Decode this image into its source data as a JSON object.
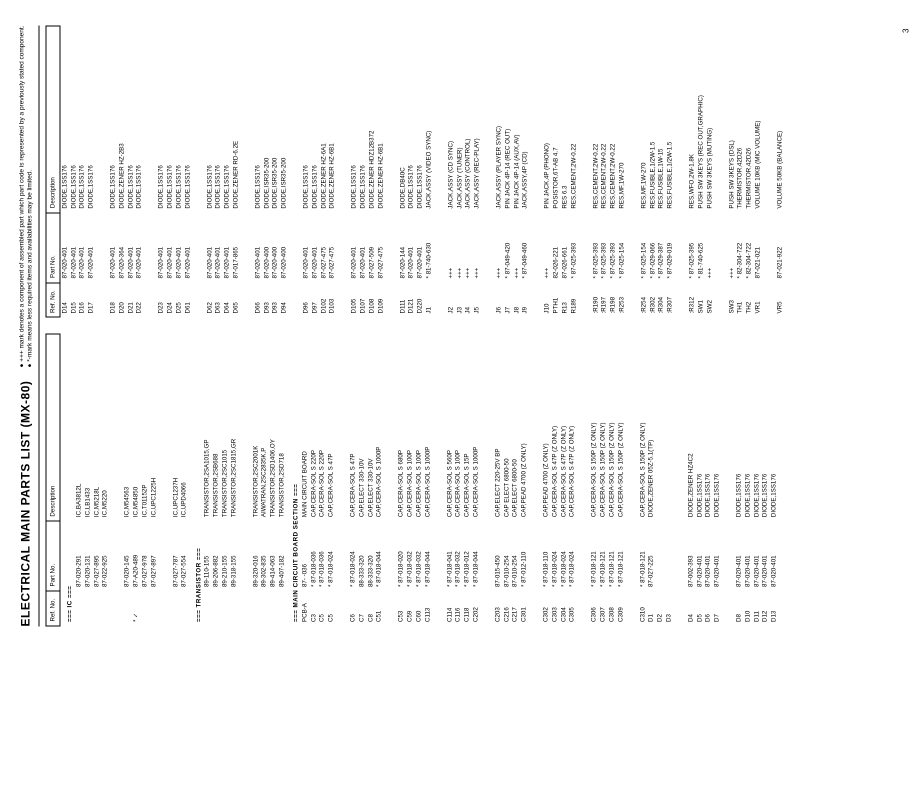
{
  "title": "ELECTRICAL MAIN PARTS LIST (MX-80)",
  "notes_line1": "● +++ mark denotes a component of assembled part which part code is represented by a previously stated component.",
  "notes_line2": "● *-mark means less required items and availabilities may be limited.",
  "headers": {
    "ref": "Ref. No.",
    "part": "Part No.",
    "desc": "Description"
  },
  "page_number": "3",
  "left_rows": [
    {
      "type": "section",
      "ref": "=== IC ==="
    },
    {
      "ref": "",
      "part": "87-020-291",
      "desc": "IC,BA3812L"
    },
    {
      "ref": "",
      "part": "87-020-131",
      "desc": "IC,LB1433"
    },
    {
      "ref": "",
      "part": "87-027-895",
      "desc": "IC,M5218L"
    },
    {
      "ref": "",
      "part": "87-022-925",
      "desc": "IC,M5220"
    },
    {
      "type": "gap"
    },
    {
      "ref": "",
      "part": "87-020-145",
      "desc": "IC,M54563"
    },
    {
      "ref": "* ✓",
      "part": "87-A20-489",
      "desc": "IC,M54850"
    },
    {
      "ref": "",
      "part": "87-027-978",
      "desc": "IC,T01152P"
    },
    {
      "ref": "",
      "part": "87-027-897",
      "desc": "IC,UPC1225H"
    },
    {
      "type": "gap"
    },
    {
      "ref": "",
      "part": "87-027-787",
      "desc": "IC,UPC1237H"
    },
    {
      "ref": "",
      "part": "87-027-554",
      "desc": "IC,UPD4066"
    },
    {
      "type": "section",
      "ref": "=== TRANSISTOR ==="
    },
    {
      "ref": "",
      "part": "89-110-155",
      "desc": "TRANSISTOR,2SA1015,GP"
    },
    {
      "ref": "",
      "part": "89-206-882",
      "desc": "TRANSISTOR,2SB688"
    },
    {
      "ref": "",
      "part": "89-210-155",
      "desc": "TRANSISTOR,2SC1015"
    },
    {
      "ref": "",
      "part": "89-318-155",
      "desc": "TRANSISTOR,2SC1815,GR"
    },
    {
      "type": "gap"
    },
    {
      "ref": "",
      "part": "89-320-016",
      "desc": "TRANSISTOR,2SC2001K"
    },
    {
      "ref": "",
      "part": "89-302-835",
      "desc": "AIWATRAN,2SC2835K,P"
    },
    {
      "ref": "",
      "part": "89-414-063",
      "desc": "TRANSISTOR,2SD1406,OY"
    },
    {
      "ref": "",
      "part": "89-407-182",
      "desc": "TRANSISTOR,2SD718"
    },
    {
      "type": "section",
      "ref": "=== MAIN CIRCUIT BOARD SECTION ==="
    },
    {
      "ref": "PCB-A",
      "part": "87-     -036",
      "desc": "MAIN CIRCUIT BOARD"
    },
    {
      "ref": "C3",
      "part": "* 87-018-036",
      "desc": "CAP,CERA-SOL S 220P"
    },
    {
      "ref": "C5",
      "part": "* 87-018-036",
      "desc": "CAP,CERA-SOL S 220P"
    },
    {
      "ref": "C5",
      "part": "* 87-018-024",
      "desc": "CAP,CERA-SOL S 47P"
    },
    {
      "type": "gap"
    },
    {
      "ref": "C6",
      "part": "* 87-018-024",
      "desc": "CAP,CERA-SOL S 47P"
    },
    {
      "ref": "C7",
      "part": "88-333-320",
      "desc": "CAP,ELECT 330-10V"
    },
    {
      "ref": "C8",
      "part": "88-333-320",
      "desc": "CAP,ELECT 330-10V"
    },
    {
      "ref": "C51",
      "part": "* 87-018-044",
      "desc": "CAP,CERA-SOL S 1000P"
    },
    {
      "type": "gap"
    },
    {
      "ref": "C53",
      "part": "* 87-018-020",
      "desc": "CAP,CERA-SOL S 680P"
    },
    {
      "ref": "C59",
      "part": "* 87-018-032",
      "desc": "CAP,CERA-SOL S 100P"
    },
    {
      "ref": "C60",
      "part": "* 87-018-032",
      "desc": "CAP,CERA-SOL S 100P"
    },
    {
      "ref": "C113",
      "part": "* 87-018-044",
      "desc": "CAP,CERA-SOL S 1000P"
    },
    {
      "type": "gap"
    },
    {
      "ref": "C114",
      "part": "* 87-018-041",
      "desc": "CAP,CERA-SOL S 560P"
    },
    {
      "ref": "C116",
      "part": "* 87-018-032",
      "desc": "CAP,CERA-SOL S 100P"
    },
    {
      "ref": "C118",
      "part": "* 87-018-012",
      "desc": "CAP,CERA-SOL S 15P"
    },
    {
      "ref": "C202",
      "part": "* 87-018-044",
      "desc": "CAP,CERA-SOL S 1000P"
    },
    {
      "type": "gap"
    },
    {
      "ref": "C203",
      "part": "87-015-450",
      "desc": "CAP,ELECT 220-25V BP"
    },
    {
      "ref": "C216",
      "part": "87-010-254",
      "desc": "CAP ELECT 6800-50"
    },
    {
      "ref": "C217",
      "part": "87-010-254",
      "desc": "CAP,ELECT 6800-50"
    },
    {
      "ref": "C301",
      "part": "* 87-012-110",
      "desc": "CAP,PEAD 4700 (Z ONLY)"
    },
    {
      "type": "gap"
    },
    {
      "ref": "C302",
      "part": "* 87-018-110",
      "desc": "CAP,PEAD 4700 (Z ONLY)"
    },
    {
      "ref": "C303",
      "part": "* 87-018-024",
      "desc": "CAP,CERA-SOL S 47P (Z ONLY)"
    },
    {
      "ref": "C304",
      "part": "* 87-018-024",
      "desc": "CAP,CERA-SOL S 47P (Z ONLY)"
    },
    {
      "ref": "C305",
      "part": "* 87-018-024",
      "desc": "CAP,CERA-SOL S 47P (Z ONLY)"
    },
    {
      "type": "gap"
    },
    {
      "ref": "C306",
      "part": "* 87-018-121",
      "desc": "CAP,CERA-SOL S 150P (Z ONLY)"
    },
    {
      "ref": "C307",
      "part": "* 87-018-121",
      "desc": "CAP,CERA-SOL S 150P (Z ONLY)"
    },
    {
      "ref": "C308",
      "part": "* 87-018-121",
      "desc": "CAP,CERA-SOL S 150P (Z ONLY)"
    },
    {
      "ref": "C309",
      "part": "* 87-018-121",
      "desc": "CAP,CERA-SOL S 150P (Z ONLY)"
    },
    {
      "type": "gap"
    },
    {
      "ref": "C310",
      "part": "* 87-018-121",
      "desc": "CAP,CERA-SOL S 150P (Z ONLY)"
    },
    {
      "ref": "D1",
      "part": "87-027-225",
      "desc": "DIODE,ZENER 05Z-5.1(TP)"
    },
    {
      "ref": "D2",
      "part": "",
      "desc": ""
    },
    {
      "ref": "D3",
      "part": "",
      "desc": ""
    },
    {
      "type": "gap"
    },
    {
      "ref": "D4",
      "part": "87-002-393",
      "desc": "DIODE,ZENER HZ4C2"
    },
    {
      "ref": "D5",
      "part": "87-020-401",
      "desc": "DIODE,1SS176"
    },
    {
      "ref": "D6",
      "part": "87-020-401",
      "desc": "DIODE,1SS176"
    },
    {
      "ref": "D7",
      "part": "87-020-401",
      "desc": "DIODE,1SS176"
    },
    {
      "type": "gap"
    },
    {
      "ref": "D8",
      "part": "87-020-401",
      "desc": "DIODE,1SS176"
    },
    {
      "ref": "D10",
      "part": "87-020-401",
      "desc": "DIODE,1SS176"
    },
    {
      "ref": "D11",
      "part": "87-020-401",
      "desc": "DIODE,1SS176"
    },
    {
      "ref": "D12",
      "part": "87-020-401",
      "desc": "DIODE,1SS176"
    },
    {
      "ref": "D13",
      "part": "87-020-401",
      "desc": "DIODE,1SS176"
    }
  ],
  "right_rows": [
    {
      "ref": "D14",
      "part": "87-020-401",
      "desc": "DIODE,1SS176"
    },
    {
      "ref": "D15",
      "part": "87-020-401",
      "desc": "DIODE,1SS176"
    },
    {
      "ref": "D16",
      "part": "87-020-401",
      "desc": "DIODE,1SS176"
    },
    {
      "ref": "D17",
      "part": "87-020-401",
      "desc": "DIODE,1SS176"
    },
    {
      "type": "gap"
    },
    {
      "ref": "D18",
      "part": "87-020-401",
      "desc": "DIODE,1SS176"
    },
    {
      "ref": "D20",
      "part": "87-020-364",
      "desc": "DIODE,ZENER HZ-2B3"
    },
    {
      "ref": "D21",
      "part": "87-020-401",
      "desc": "DIODE,1SS176"
    },
    {
      "ref": "D22",
      "part": "87-020-401",
      "desc": "DIODE,1SS176"
    },
    {
      "type": "gap"
    },
    {
      "ref": "D23",
      "part": "87-020-401",
      "desc": "DIODE,1SS176"
    },
    {
      "ref": "D24",
      "part": "87-020-401",
      "desc": "DIODE,1SS176"
    },
    {
      "ref": "D25",
      "part": "87-020-401",
      "desc": "DIODE,1SS176"
    },
    {
      "ref": "D61",
      "part": "87-020-401",
      "desc": "DIODE,1SS176"
    },
    {
      "type": "gap"
    },
    {
      "ref": "D62",
      "part": "87-020-401",
      "desc": "DIODE,1SS176"
    },
    {
      "ref": "D63",
      "part": "87-020-401",
      "desc": "DIODE,1SS176"
    },
    {
      "ref": "D64",
      "part": "87-020-401",
      "desc": "DIODE,1SS176"
    },
    {
      "ref": "D65",
      "part": "87-017-865",
      "desc": "DIODE,ZENER RD-6.2E"
    },
    {
      "type": "gap"
    },
    {
      "ref": "D66",
      "part": "87-020-401",
      "desc": "DIODE,1SS176"
    },
    {
      "ref": "D93",
      "part": "87-020-400",
      "desc": "DIODE,ISR35-200"
    },
    {
      "ref": "D93",
      "part": "87-020-400",
      "desc": "DIODE,ISR35-200"
    },
    {
      "ref": "D94",
      "part": "87-020-400",
      "desc": "DIODE,ISR35-200"
    },
    {
      "type": "gap"
    },
    {
      "ref": "D96",
      "part": "87-020-401",
      "desc": "DIODE,1SS176"
    },
    {
      "ref": "D97",
      "part": "87-020-401",
      "desc": "DIODE,1SS176"
    },
    {
      "ref": "D102",
      "part": "87-027-475",
      "desc": "DIODE,ZENER HZ-6A1"
    },
    {
      "ref": "D103",
      "part": "87-027-475",
      "desc": "DIODE,ZENER HZ-6B1"
    },
    {
      "type": "gap"
    },
    {
      "ref": "D105",
      "part": "87-020-401",
      "desc": "DIODE,1SS176"
    },
    {
      "ref": "D107",
      "part": "87-020-401",
      "desc": "DIODE,1SS176"
    },
    {
      "ref": "D108",
      "part": "87-027-509",
      "desc": "DIODE,ZENER HDZ12B372"
    },
    {
      "ref": "D109",
      "part": "87-027-475",
      "desc": "DIODE,ZENER HZ-6B1"
    },
    {
      "type": "gap"
    },
    {
      "ref": "D111",
      "part": "87-020-144",
      "desc": "DIODE,DB40C"
    },
    {
      "ref": "D121",
      "part": "87-020-401",
      "desc": "DIODE,1SS176"
    },
    {
      "ref": "D220",
      "part": "87-020-401",
      "desc": "DIODE,1SS176"
    },
    {
      "ref": "J1",
      "part": "* 81-740-630",
      "desc": "JACK,ASSY (VIDEO SYNC)"
    },
    {
      "type": "gap"
    },
    {
      "ref": "J2",
      "part": "+++",
      "desc": "JACK,ASSY (CD SYNC)"
    },
    {
      "ref": "J3",
      "part": "+++",
      "desc": "JACK,ASSY (TUNER)"
    },
    {
      "ref": "J4",
      "part": "+++",
      "desc": "JACK,ASSY (CONTROL)"
    },
    {
      "ref": "J5",
      "part": "+++",
      "desc": "JACK,ASSY (REC-PLAY)"
    },
    {
      "type": "gap"
    },
    {
      "ref": "J6",
      "part": "+++",
      "desc": "JACK,ASSY (PLAYER SYNC)"
    },
    {
      "ref": "J7",
      "part": "* 87-049-420",
      "desc": "PIN JACK 4P-14 (REC OUT)"
    },
    {
      "ref": "J8",
      "part": "+++",
      "desc": "PIN JACK 4P-14 (AUX,AV)"
    },
    {
      "ref": "J9",
      "part": "* 87-049-460",
      "desc": "JACK,ASSY,4P (CD)"
    },
    {
      "type": "gap"
    },
    {
      "ref": "J10",
      "part": "+++",
      "desc": "PIN JACK,4P (PHONO)"
    },
    {
      "ref": "PTH1",
      "part": "82-026-221",
      "desc": "POSISTOR,6T-AB 4.7"
    },
    {
      "ref": "R13",
      "part": "87-026-661",
      "desc": "RES  6.3"
    },
    {
      "ref": "R189",
      "part": "* 87-025-393",
      "desc": "RES,CEMENT,2W-0.22"
    },
    {
      "type": "gap"
    },
    {
      "ref": ":R190",
      "part": "* 87-025-393",
      "desc": "RES,CEMENT,2W-0.22"
    },
    {
      "ref": ":R197",
      "part": "* 87-025-393",
      "desc": "RES,CEMENT,2W-0.22"
    },
    {
      "ref": ":R198",
      "part": "* 87-025-393",
      "desc": "RES,CEMENT,2W-0.22"
    },
    {
      "ref": ":R253",
      "part": "* 87-025-154",
      "desc": "RES,MF,1W-270"
    },
    {
      "type": "gap"
    },
    {
      "ref": ":R254",
      "part": "* 87-025-154",
      "desc": "RES,MF,1W-270"
    },
    {
      "ref": ":R302",
      "part": "* 87-029-066",
      "desc": "RES,FUSIBLE,1/2W-1.5"
    },
    {
      "ref": ":R304",
      "part": "* 87-029-387",
      "desc": "RES,FUSIBLE,1W-15"
    },
    {
      "ref": ":R307",
      "part": "* 87-029-019",
      "desc": "RES,FUSIBLE,1/2W-1.5"
    },
    {
      "type": "gap"
    },
    {
      "ref": ":R312",
      "part": "* 87-025-395",
      "desc": "RES,WFO,2W-1.8K"
    },
    {
      "ref": "SW1",
      "part": "* 81-740-625",
      "desc": "PUSH SW 3KEYS (REC OUT,GRAPHIC)"
    },
    {
      "ref": "SW2",
      "part": "+++",
      "desc": "PUSH SW 3KEYS (MUTING)"
    },
    {
      "type": "gap"
    },
    {
      "ref": "SW3",
      "part": "+++",
      "desc": "PUSH SW 3KEYS (DSL)"
    },
    {
      "ref": "TH1",
      "part": "* 82-304-722",
      "desc": "THERMISTOR,42D26"
    },
    {
      "ref": "TH2",
      "part": "* 82-304-722",
      "desc": "THERMISTOR,42D26"
    },
    {
      "ref": "VR1",
      "part": "87-021-021",
      "desc": "VOLUME 10KB (MIC VOLUME)"
    },
    {
      "type": "gap"
    },
    {
      "ref": "VR5",
      "part": "87-021-922",
      "desc": "VOLUME 50KB (BALANCE)"
    }
  ]
}
